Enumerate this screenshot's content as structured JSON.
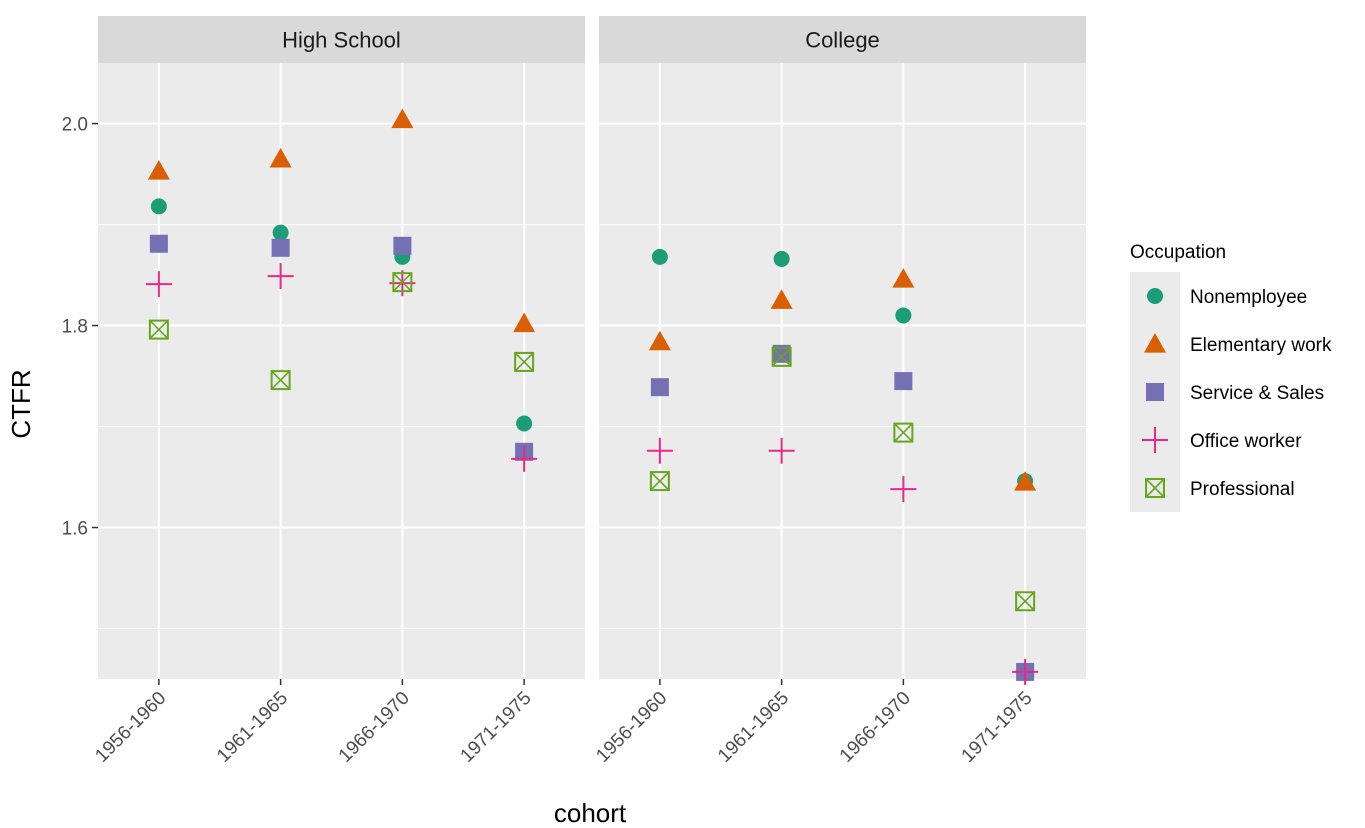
{
  "chart_data": {
    "type": "scatter",
    "xlabel": "cohort",
    "ylabel": "CTFR",
    "ylim": [
      1.45,
      2.06
    ],
    "yticks": [
      1.6,
      1.8,
      2.0
    ],
    "ytick_labels": [
      "1.6",
      "1.8",
      "2.0"
    ],
    "grid": true,
    "legend_position": "right",
    "legend_title": "Occupation",
    "categories": [
      "1956-1960",
      "1961-1965",
      "1966-1970",
      "1971-1975"
    ],
    "panels": [
      {
        "label": "High School",
        "series": [
          {
            "name": "Nonemployee",
            "values": [
              1.918,
              1.892,
              1.868,
              1.703
            ]
          },
          {
            "name": "Elementary work",
            "values": [
              1.953,
              1.965,
              2.004,
              1.802
            ]
          },
          {
            "name": "Service & Sales",
            "values": [
              1.881,
              1.877,
              1.879,
              1.675
            ]
          },
          {
            "name": "Office worker",
            "values": [
              1.841,
              1.849,
              1.842,
              1.668
            ]
          },
          {
            "name": "Professional",
            "values": [
              1.796,
              1.746,
              1.843,
              1.764
            ]
          }
        ]
      },
      {
        "label": "College",
        "series": [
          {
            "name": "Nonemployee",
            "values": [
              1.868,
              1.866,
              1.81,
              1.646
            ]
          },
          {
            "name": "Elementary work",
            "values": [
              1.784,
              1.825,
              1.846,
              1.645
            ]
          },
          {
            "name": "Service & Sales",
            "values": [
              1.739,
              1.772,
              1.745,
              1.457
            ]
          },
          {
            "name": "Office worker",
            "values": [
              1.676,
              1.676,
              1.638,
              1.457
            ]
          },
          {
            "name": "Professional",
            "values": [
              1.646,
              1.769,
              1.694,
              1.527
            ]
          }
        ]
      }
    ],
    "series_styles": [
      {
        "name": "Nonemployee",
        "shape": "circle",
        "color": "#1b9e77"
      },
      {
        "name": "Elementary work",
        "shape": "triangle",
        "color": "#d95f02"
      },
      {
        "name": "Service & Sales",
        "shape": "square",
        "color": "#7570b3"
      },
      {
        "name": "Office worker",
        "shape": "plus",
        "color": "#e7298a"
      },
      {
        "name": "Professional",
        "shape": "boxed-x",
        "color": "#66a61e"
      }
    ],
    "colors": {
      "panel_background": "#ebebeb",
      "strip_background": "#d9d9d9",
      "grid": "#ffffff"
    }
  }
}
